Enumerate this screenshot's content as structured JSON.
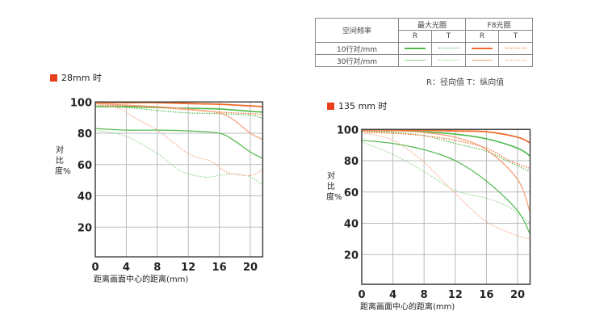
{
  "legend": {
    "header_freq": "空间频率",
    "header_max": "最大光圈",
    "header_f8": "F8光圈",
    "r": "R",
    "t": "T",
    "row10": "10行对/mm",
    "row30": "30行对/mm",
    "note": "R：径向值  T：纵向值"
  },
  "colors": {
    "green": "#4db848",
    "green_light": "#8fd48a",
    "orange": "#f06a28",
    "orange_light": "#f5a27a",
    "marker": "#e8401c"
  },
  "chart_data": [
    {
      "type": "line",
      "title": "28mm 时",
      "xlabel": "距离画面中心的距离(mm)",
      "ylabel": "对比度%",
      "xlim": [
        0,
        21.6
      ],
      "ylim": [
        0,
        100
      ],
      "xticks": [
        0,
        4,
        8,
        12,
        16,
        20
      ],
      "yticks": [
        20,
        40,
        60,
        80,
        100
      ],
      "grid": true,
      "series": [
        {
          "name": "最大光圈 R 10行对/mm",
          "x": [
            0,
            4,
            8,
            12,
            16,
            20,
            21.6
          ],
          "y": [
            97,
            97,
            96.5,
            96,
            95.5,
            94,
            93.5
          ]
        },
        {
          "name": "最大光圈 T 10行对/mm",
          "x": [
            0,
            4,
            8,
            12,
            16,
            20,
            21.6
          ],
          "y": [
            97,
            96.5,
            94.5,
            93,
            92.5,
            91.5,
            89.5
          ]
        },
        {
          "name": "最大光圈 R 30行对/mm",
          "x": [
            0,
            4,
            8,
            12,
            16,
            18,
            20,
            21.6
          ],
          "y": [
            83,
            82,
            82,
            81.5,
            80,
            75,
            68,
            64
          ]
        },
        {
          "name": "最大光圈 T 30行对/mm",
          "x": [
            0,
            4,
            8,
            11,
            14,
            16,
            18,
            20,
            21.6
          ],
          "y": [
            82,
            78,
            67,
            56,
            52,
            53,
            54,
            52,
            47
          ]
        },
        {
          "name": "F8光圈 R 10行对/mm",
          "x": [
            0,
            4,
            8,
            12,
            16,
            20,
            21.6
          ],
          "y": [
            99.5,
            99.5,
            99.5,
            99,
            98.5,
            97.5,
            97
          ]
        },
        {
          "name": "F8光圈 T 10行对/mm",
          "x": [
            0,
            4,
            8,
            12,
            16,
            20,
            21.6
          ],
          "y": [
            98,
            97.5,
            96.5,
            95,
            93.5,
            92.5,
            92
          ]
        },
        {
          "name": "F8光圈 R 30行对/mm",
          "x": [
            0,
            4,
            8,
            12,
            16,
            18,
            20,
            21.6
          ],
          "y": [
            99,
            98,
            97,
            95.5,
            93,
            88,
            80,
            76
          ]
        },
        {
          "name": "F8光圈 T 30行对/mm",
          "x": [
            0,
            3,
            5,
            8,
            12,
            15,
            17,
            20,
            21.6
          ],
          "y": [
            98,
            96,
            90,
            82,
            67,
            62,
            55,
            53,
            57
          ]
        }
      ]
    },
    {
      "type": "line",
      "title": "135 mm 时",
      "xlabel": "距离画面中心的距离(mm)",
      "ylabel": "对比度%",
      "xlim": [
        0,
        21.6
      ],
      "ylim": [
        0,
        100
      ],
      "xticks": [
        0,
        4,
        8,
        12,
        16,
        20
      ],
      "yticks": [
        20,
        40,
        60,
        80,
        100
      ],
      "grid": true,
      "series": [
        {
          "name": "最大光圈 R 10行对/mm",
          "x": [
            0,
            4,
            8,
            12,
            16,
            20,
            21.6
          ],
          "y": [
            99,
            99,
            98.5,
            97,
            94,
            88,
            83
          ]
        },
        {
          "name": "最大光圈 T 10行对/mm",
          "x": [
            0,
            4,
            8,
            12,
            16,
            19,
            21.6
          ],
          "y": [
            99,
            98,
            96,
            91,
            86,
            79,
            73
          ]
        },
        {
          "name": "最大光圈 R 30行对/mm",
          "x": [
            0,
            4,
            8,
            12,
            16,
            20,
            21.6
          ],
          "y": [
            93,
            91,
            87,
            80,
            67,
            48,
            33
          ]
        },
        {
          "name": "最大光圈 T 30行对/mm",
          "x": [
            0,
            4,
            8,
            12,
            16,
            19,
            21.6
          ],
          "y": [
            92,
            84,
            73,
            61,
            56,
            50,
            40
          ]
        },
        {
          "name": "F8光圈 R 10行对/mm",
          "x": [
            0,
            4,
            8,
            12,
            16,
            20,
            21.6
          ],
          "y": [
            99.5,
            99.5,
            99.5,
            99,
            98.5,
            95,
            91.5
          ]
        },
        {
          "name": "F8光圈 T 10行对/mm",
          "x": [
            0,
            4,
            8,
            12,
            16,
            19,
            21.6
          ],
          "y": [
            98,
            97.5,
            96,
            93,
            88,
            80,
            75
          ]
        },
        {
          "name": "F8光圈 R 30行对/mm",
          "x": [
            0,
            4,
            8,
            12,
            16,
            20,
            21.6
          ],
          "y": [
            99,
            99,
            98,
            95,
            87,
            68,
            47
          ]
        },
        {
          "name": "F8光圈 T 30行对/mm",
          "x": [
            0,
            4,
            8,
            12,
            16,
            20,
            21.6
          ],
          "y": [
            98,
            93,
            79,
            59,
            41,
            32,
            30
          ]
        }
      ]
    }
  ]
}
